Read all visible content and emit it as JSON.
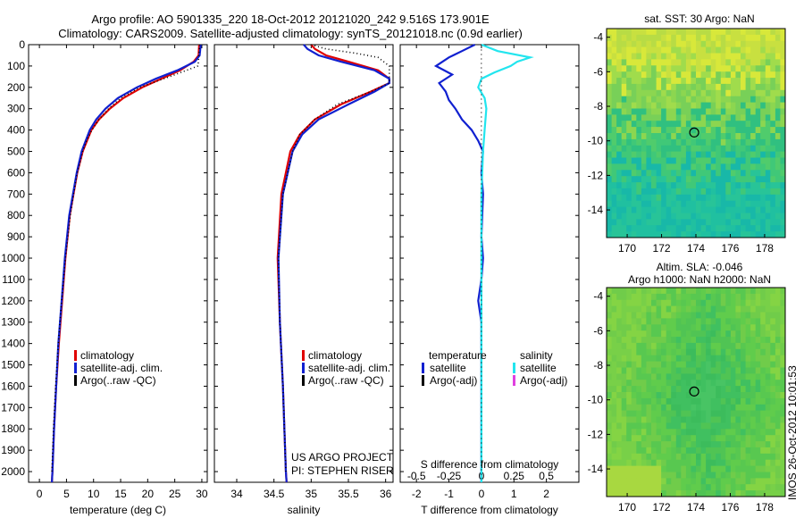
{
  "header": {
    "line1": "Argo profile: AO 5901335_220 18-Oct-2012 20121020_242 9.516S 173.901E",
    "line2": "Climatology: CARS2009. Satellite-adjusted climatology: synTS_20121018.nc (0.9d earlier)"
  },
  "colors": {
    "climatology": "#e00000",
    "satellite": "#1020d0",
    "argo": "#000000",
    "sat_s": "#22e5ee",
    "argo_s": "#e040e0"
  },
  "chart_data": [
    {
      "type": "line",
      "xlabel": "temperature (deg C)",
      "xlim": [
        -2,
        31
      ],
      "ylim": [
        0,
        2050
      ],
      "xticks": [
        0,
        5,
        10,
        15,
        20,
        25,
        30
      ],
      "yticks": [
        0,
        100,
        200,
        300,
        400,
        500,
        600,
        700,
        800,
        900,
        1000,
        1100,
        1200,
        1300,
        1400,
        1500,
        1600,
        1700,
        1800,
        1900,
        2000
      ],
      "legend": [
        "climatology",
        "satellite-adj. clim.",
        "Argo(..raw -QC)"
      ],
      "series": [
        {
          "name": "climatology",
          "depth": [
            0,
            50,
            80,
            120,
            160,
            200,
            250,
            300,
            350,
            400,
            500,
            600,
            800,
            1000,
            1200,
            1400,
            1600,
            1800,
            2000,
            2050
          ],
          "values": [
            29.5,
            29.4,
            28.5,
            26,
            22.5,
            19,
            15.5,
            13,
            11,
            9.6,
            8,
            7,
            5.6,
            4.8,
            4.2,
            3.6,
            3.1,
            2.7,
            2.4,
            2.3
          ]
        },
        {
          "name": "satellite-adj. clim.",
          "depth": [
            0,
            50,
            80,
            120,
            160,
            200,
            250,
            300,
            350,
            400,
            500,
            600,
            800,
            1000,
            1200,
            1400,
            1600,
            1800,
            2000,
            2050
          ],
          "values": [
            29.8,
            29.6,
            28.7,
            25.5,
            21.5,
            18,
            14.5,
            12.2,
            10.5,
            9.3,
            7.8,
            6.9,
            5.5,
            4.7,
            4.1,
            3.5,
            3.1,
            2.7,
            2.4,
            2.3
          ]
        },
        {
          "name": "Argo(..raw -QC)",
          "depth": [
            0,
            100,
            150,
            200,
            250,
            300,
            350,
            400,
            450,
            500,
            600,
            700,
            800,
            1000,
            1200,
            1400,
            1600,
            1800,
            2000
          ],
          "values": [
            29.6,
            29.3,
            24,
            18.5,
            15,
            12.8,
            11,
            9.7,
            8.7,
            8,
            7,
            6.3,
            5.7,
            4.8,
            4.1,
            3.5,
            3.0,
            2.6,
            2.3
          ]
        }
      ]
    },
    {
      "type": "line",
      "xlabel": "salinity",
      "xlim": [
        33.7,
        36.1
      ],
      "ylim": [
        0,
        2050
      ],
      "xticks": [
        34,
        34.5,
        35,
        35.5,
        36
      ],
      "legend": [
        "climatology",
        "satellite-adj. clim.",
        "Argo(..raw -QC)"
      ],
      "series": [
        {
          "name": "climatology",
          "depth": [
            0,
            20,
            50,
            80,
            120,
            160,
            180,
            220,
            280,
            350,
            420,
            500,
            700,
            1000,
            1300,
            1600,
            2000,
            2050
          ],
          "values": [
            35.0,
            35.05,
            35.2,
            35.5,
            35.9,
            36.05,
            36.05,
            35.8,
            35.4,
            35.05,
            34.85,
            34.72,
            34.6,
            34.55,
            34.58,
            34.62,
            34.66,
            34.67
          ]
        },
        {
          "name": "satellite-adj. clim.",
          "depth": [
            0,
            20,
            50,
            80,
            120,
            160,
            180,
            220,
            280,
            350,
            420,
            500,
            700,
            1000,
            1300,
            1600,
            2000,
            2050
          ],
          "values": [
            34.9,
            34.95,
            35.1,
            35.4,
            35.85,
            36.05,
            36.05,
            35.85,
            35.5,
            35.1,
            34.88,
            34.75,
            34.62,
            34.56,
            34.58,
            34.62,
            34.66,
            34.67
          ]
        },
        {
          "name": "Argo(..raw -QC)",
          "depth": [
            0,
            20,
            40,
            60,
            100,
            120,
            150,
            180,
            220,
            280,
            350,
            420,
            500,
            700,
            1000,
            1300,
            1600,
            2000
          ],
          "values": [
            35.0,
            35.2,
            35.6,
            35.9,
            36.05,
            36.05,
            36.05,
            36.05,
            35.8,
            35.35,
            35.05,
            34.85,
            34.75,
            34.62,
            34.56,
            34.58,
            34.62,
            34.66
          ]
        }
      ]
    },
    {
      "type": "line",
      "xlabel": "T difference from climatology",
      "xlabel2": "S difference from climatology",
      "xlim": [
        -2.5,
        3
      ],
      "ylim": [
        0,
        2050
      ],
      "xticks": [
        -2,
        -1,
        0,
        1,
        2
      ],
      "xticks2": [
        -0.5,
        -0.25,
        0,
        0.25,
        0.5
      ],
      "legend_t": "temperature",
      "legend_s": "salinity",
      "legend_t_items": [
        "satellite",
        "Argo(-adj)"
      ],
      "legend_s_items": [
        "satellite",
        "Argo(-adj)"
      ],
      "series": [
        {
          "name": "satellite",
          "depth": [
            0,
            30,
            60,
            100,
            140,
            180,
            220,
            260,
            300,
            350,
            400,
            450,
            500,
            600,
            700,
            900,
            1000,
            1100,
            1200,
            1300,
            1500,
            2050
          ],
          "values": [
            -0.2,
            -0.6,
            -1.0,
            -1.4,
            -0.9,
            -1.3,
            -1.1,
            -1.0,
            -0.8,
            -0.6,
            -0.3,
            -0.1,
            0.05,
            0.0,
            0.05,
            0.0,
            0.05,
            0.0,
            -0.1,
            0.0,
            0.0,
            0.0
          ]
        },
        {
          "name": "satellite-S",
          "depth": [
            0,
            30,
            60,
            80,
            100,
            130,
            160,
            200,
            250,
            300,
            400,
            500,
            700,
            1000,
            2050
          ],
          "values": [
            0.0,
            0.5,
            1.5,
            1.1,
            0.9,
            0.4,
            0.0,
            -0.1,
            0.1,
            0.15,
            0.1,
            0.05,
            0.0,
            0.0,
            0.0
          ]
        }
      ]
    }
  ],
  "watermark": {
    "line1": "US ARGO PROJECT",
    "line2": "PI: STEPHEN RISER"
  },
  "maps": [
    {
      "title": "sat. SST: 30 Argo: NaN",
      "xticks": [
        170,
        172,
        174,
        176,
        178
      ],
      "yticks": [
        -4,
        -6,
        -8,
        -10,
        -12,
        -14
      ]
    },
    {
      "title1": "Altim. SLA: -0.046",
      "title2": "Argo h1000: NaN h2000: NaN",
      "xticks": [
        170,
        172,
        174,
        176,
        178
      ],
      "yticks": [
        -4,
        -6,
        -8,
        -10,
        -12,
        -14
      ]
    }
  ],
  "stamp": "IMOS 26-Oct-2012 10:01:53"
}
